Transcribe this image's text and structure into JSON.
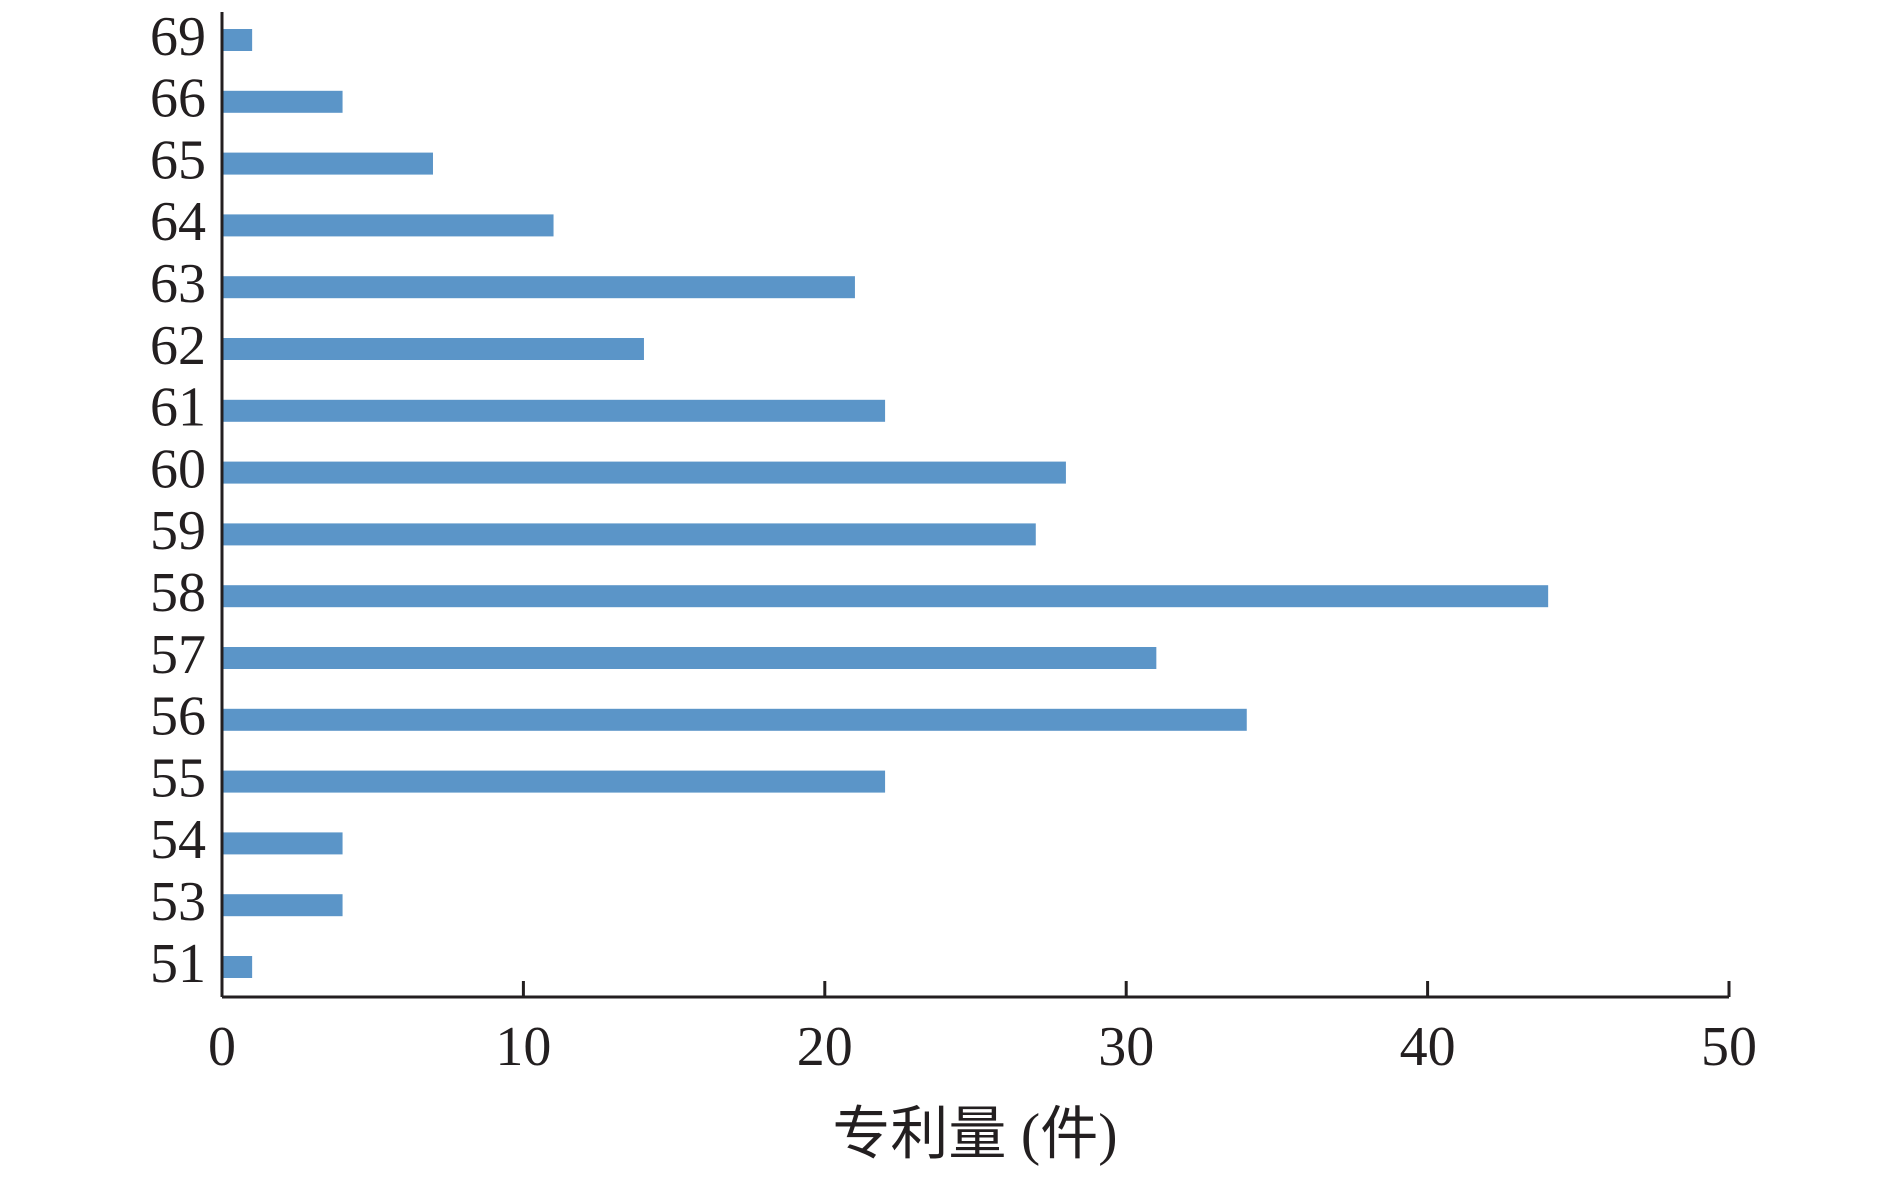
{
  "chart_data": {
    "type": "barh",
    "x_label": "专利量 (件)",
    "categories": [
      "51",
      "53",
      "54",
      "55",
      "56",
      "57",
      "58",
      "59",
      "60",
      "61",
      "62",
      "63",
      "64",
      "65",
      "66",
      "69"
    ],
    "values": [
      1,
      4,
      4,
      22,
      34,
      31,
      44,
      27,
      28,
      22,
      14,
      21,
      11,
      7,
      4,
      1
    ],
    "color": "#5b95c8",
    "xlim": [
      0,
      50
    ],
    "xticks": [
      0,
      10,
      20,
      30,
      40,
      50
    ]
  }
}
